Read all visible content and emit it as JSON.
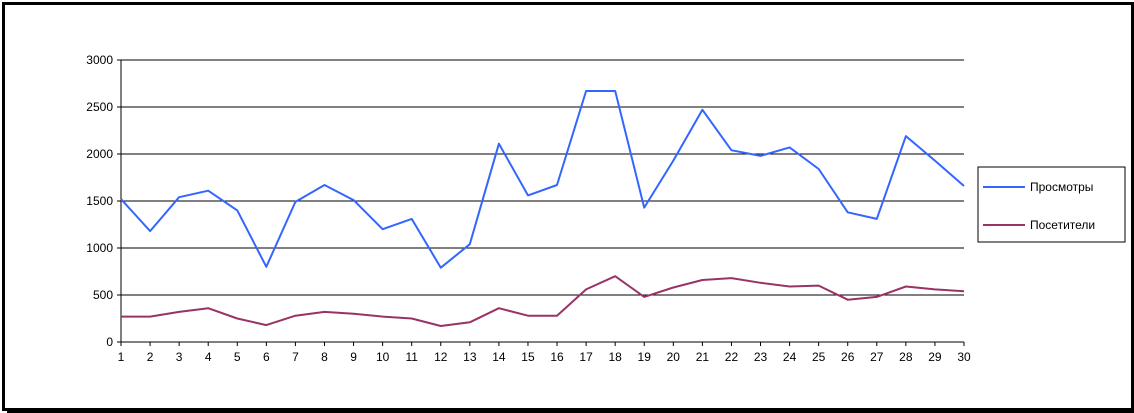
{
  "chart_data": {
    "type": "line",
    "x": [
      1,
      2,
      3,
      4,
      5,
      6,
      7,
      8,
      9,
      10,
      11,
      12,
      13,
      14,
      15,
      16,
      17,
      18,
      19,
      20,
      21,
      22,
      23,
      24,
      25,
      26,
      27,
      28,
      29,
      30
    ],
    "series": [
      {
        "name": "Просмотры",
        "color": "#3366ff",
        "values": [
          1520,
          1180,
          1540,
          1610,
          1400,
          800,
          1490,
          1670,
          1510,
          1200,
          1310,
          790,
          1040,
          2110,
          1560,
          1670,
          2670,
          2670,
          1430,
          1930,
          2470,
          2040,
          1980,
          2070,
          1840,
          1380,
          1310,
          2190,
          1930,
          1660
        ]
      },
      {
        "name": "Посетители",
        "color": "#993366",
        "values": [
          270,
          270,
          320,
          360,
          250,
          180,
          280,
          320,
          300,
          270,
          250,
          170,
          210,
          360,
          280,
          280,
          560,
          700,
          480,
          580,
          660,
          680,
          630,
          590,
          600,
          450,
          480,
          590,
          560,
          540
        ]
      }
    ],
    "y_ticks": [
      "0",
      "500",
      "1000",
      "1500",
      "2000",
      "2500",
      "3000"
    ],
    "x_ticks": [
      "1",
      "2",
      "3",
      "4",
      "5",
      "6",
      "7",
      "8",
      "9",
      "10",
      "11",
      "12",
      "13",
      "14",
      "15",
      "16",
      "17",
      "18",
      "19",
      "20",
      "21",
      "22",
      "23",
      "24",
      "25",
      "26",
      "27",
      "28",
      "29",
      "30"
    ],
    "ylim": [
      0,
      3000
    ],
    "grid": "horizontal",
    "legend": "right"
  }
}
